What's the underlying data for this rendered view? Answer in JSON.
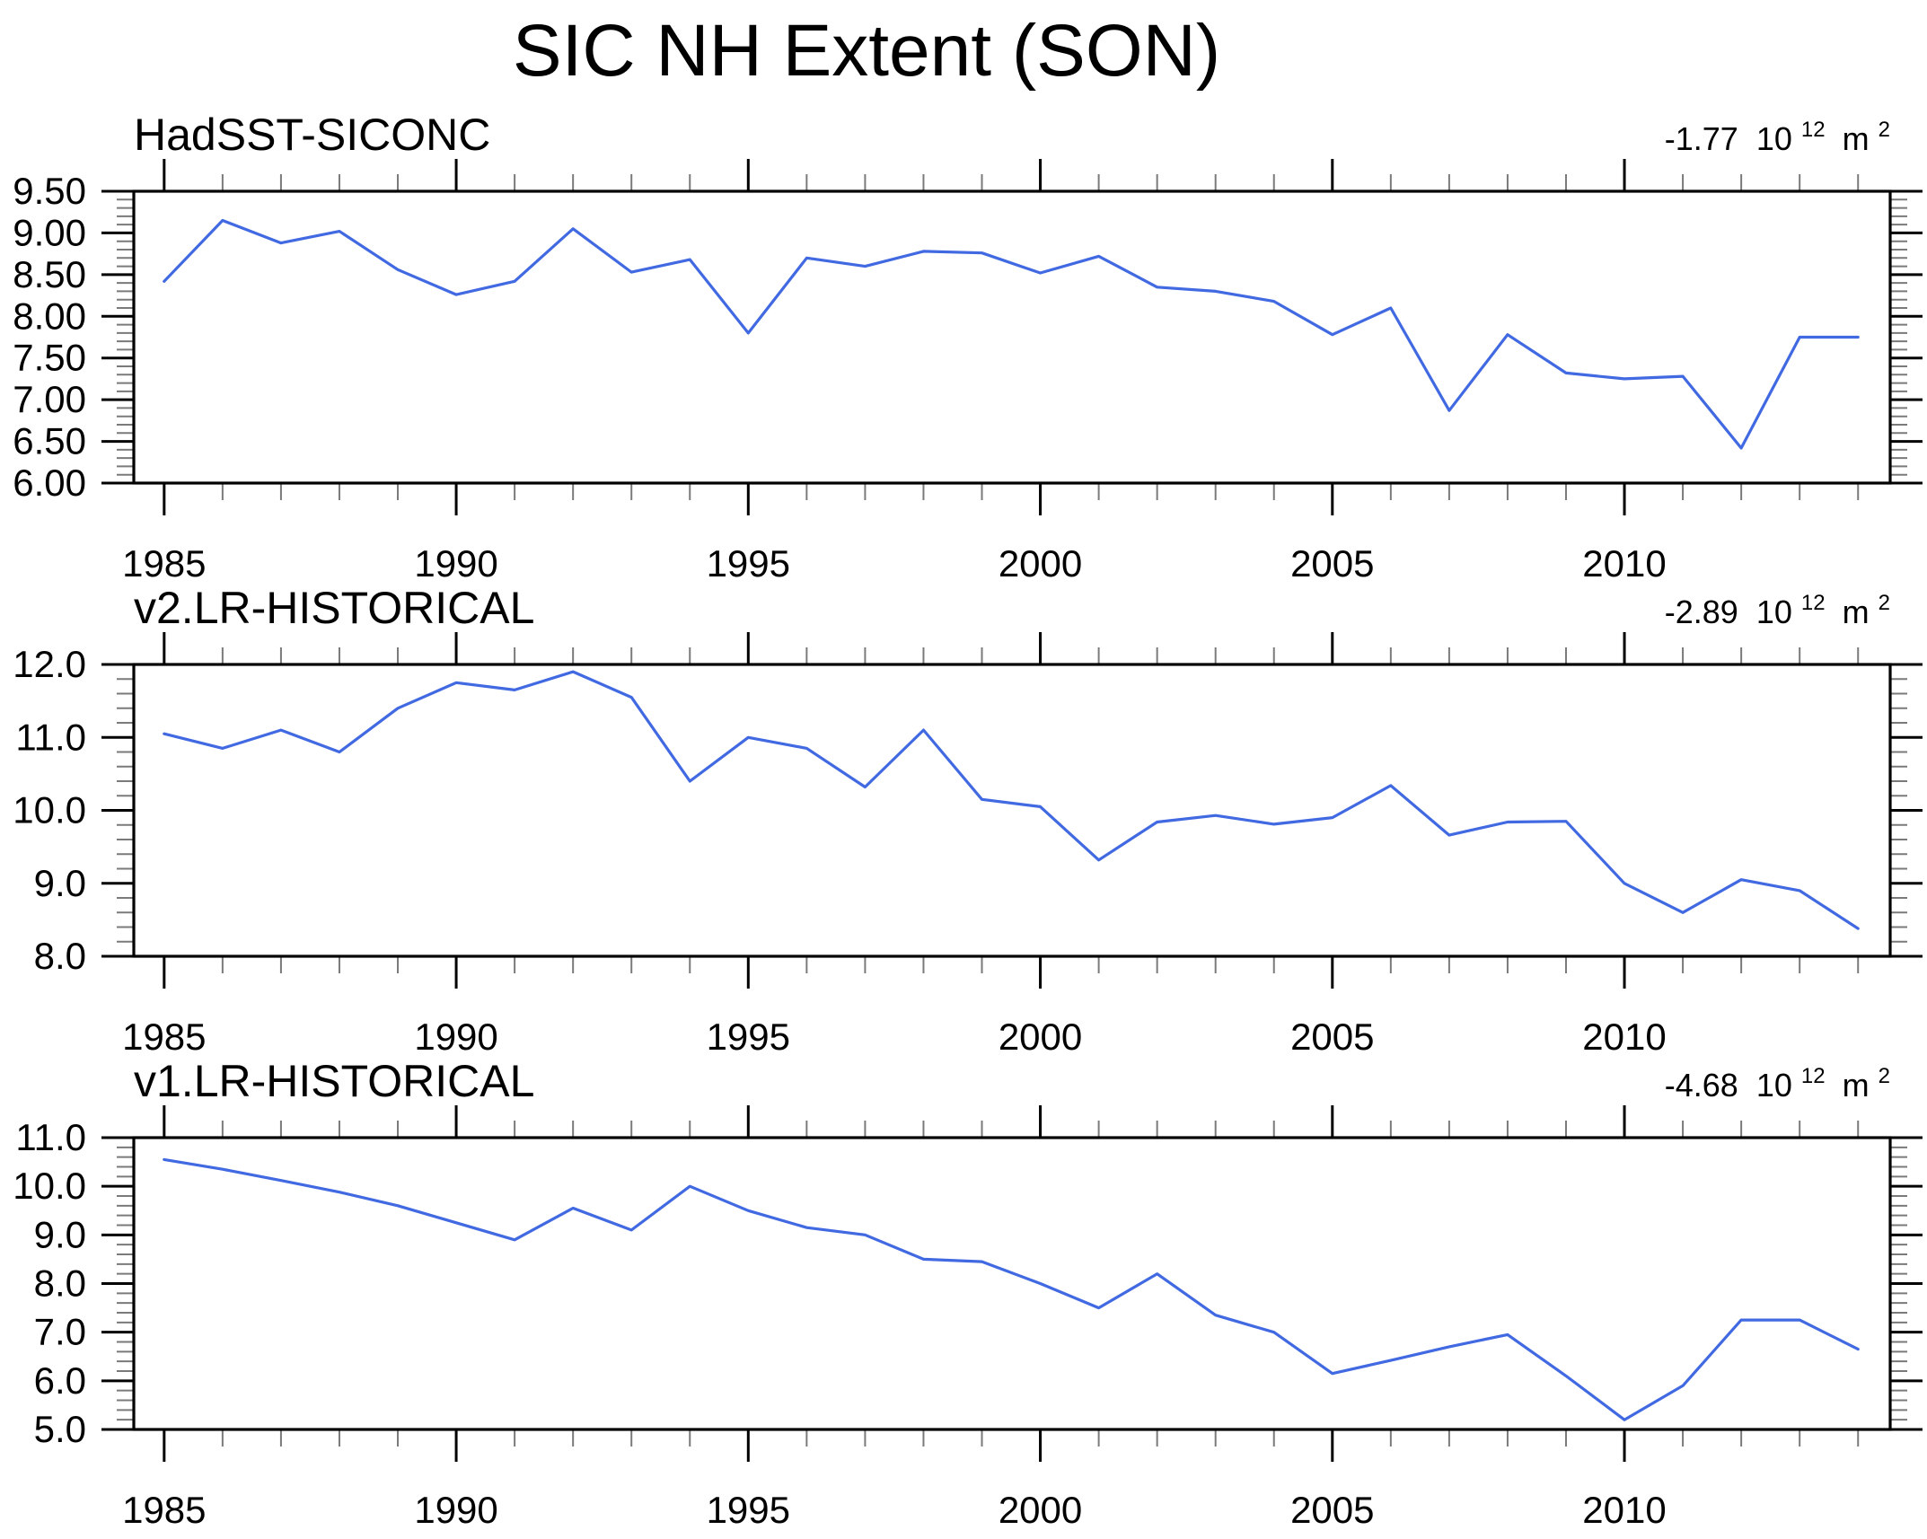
{
  "title": "SIC NH Extent (SON)",
  "colors": {
    "line": "#4169E1",
    "axis": "#000000",
    "minor_tick": "#7a7a7a",
    "background": "#ffffff"
  },
  "chart_data": [
    {
      "type": "line",
      "title": "HadSST-SICONC",
      "annotation": {
        "value": "-1.77",
        "base": "10",
        "exponent": "12",
        "unit": "m",
        "unit_exponent": "2"
      },
      "xlabel": "",
      "ylabel": "",
      "grid": false,
      "legend": "none",
      "xlim": [
        1984.48,
        2014.55
      ],
      "ylim": [
        6.0,
        9.5
      ],
      "y_major_step": 0.5,
      "y_minor_step": 0.1,
      "x_minor_step": 1,
      "x_tick_values": [
        1985,
        1990,
        1995,
        2000,
        2005,
        2010
      ],
      "x_tick_labels": [
        "1985",
        "1990",
        "1995",
        "2000",
        "2005",
        "2010"
      ],
      "y_tick_labels": [
        "9.50",
        "9.00",
        "8.50",
        "8.00",
        "7.50",
        "7.00",
        "6.50",
        "6.00"
      ],
      "x": [
        1985,
        1986,
        1987,
        1988,
        1989,
        1990,
        1991,
        1992,
        1993,
        1994,
        1995,
        1996,
        1997,
        1998,
        1999,
        2000,
        2001,
        2002,
        2003,
        2004,
        2005,
        2006,
        2007,
        2008,
        2009,
        2010,
        2011,
        2012,
        2013,
        2014
      ],
      "values": [
        8.42,
        9.15,
        8.88,
        9.02,
        8.56,
        8.26,
        8.42,
        9.05,
        8.53,
        8.68,
        7.8,
        8.7,
        8.6,
        8.78,
        8.76,
        8.52,
        8.72,
        8.35,
        8.3,
        8.18,
        7.78,
        8.1,
        6.87,
        7.78,
        7.32,
        7.25,
        7.28,
        6.42,
        7.75,
        7.75
      ]
    },
    {
      "type": "line",
      "title": "v2.LR-HISTORICAL",
      "annotation": {
        "value": "-2.89",
        "base": "10",
        "exponent": "12",
        "unit": "m",
        "unit_exponent": "2"
      },
      "xlabel": "",
      "ylabel": "",
      "grid": false,
      "legend": "none",
      "xlim": [
        1984.48,
        2014.55
      ],
      "ylim": [
        8.0,
        12.0
      ],
      "y_major_step": 1.0,
      "y_minor_step": 0.2,
      "x_minor_step": 1,
      "x_tick_values": [
        1985,
        1990,
        1995,
        2000,
        2005,
        2010
      ],
      "x_tick_labels": [
        "1985",
        "1990",
        "1995",
        "2000",
        "2005",
        "2010"
      ],
      "y_tick_labels": [
        "12.0",
        "11.0",
        "10.0",
        "9.0",
        "8.0"
      ],
      "x": [
        1985,
        1986,
        1987,
        1988,
        1989,
        1990,
        1991,
        1992,
        1993,
        1994,
        1995,
        1996,
        1997,
        1998,
        1999,
        2000,
        2001,
        2002,
        2003,
        2004,
        2005,
        2006,
        2007,
        2008,
        2009,
        2010,
        2011,
        2012,
        2013,
        2014
      ],
      "values": [
        11.05,
        10.85,
        11.1,
        10.8,
        11.4,
        11.75,
        11.65,
        11.9,
        11.55,
        10.4,
        11.0,
        10.85,
        10.32,
        11.1,
        10.15,
        10.05,
        9.32,
        9.84,
        9.93,
        9.81,
        9.9,
        10.34,
        9.66,
        9.84,
        9.85,
        9.0,
        8.6,
        9.05,
        8.9,
        8.38
      ]
    },
    {
      "type": "line",
      "title": "v1.LR-HISTORICAL",
      "annotation": {
        "value": "-4.68",
        "base": "10",
        "exponent": "12",
        "unit": "m",
        "unit_exponent": "2"
      },
      "xlabel": "",
      "ylabel": "",
      "grid": false,
      "legend": "none",
      "xlim": [
        1984.48,
        2014.55
      ],
      "ylim": [
        5.0,
        11.0
      ],
      "y_major_step": 1.0,
      "y_minor_step": 0.2,
      "x_minor_step": 1,
      "x_tick_values": [
        1985,
        1990,
        1995,
        2000,
        2005,
        2010
      ],
      "x_tick_labels": [
        "1985",
        "1990",
        "1995",
        "2000",
        "2005",
        "2010"
      ],
      "y_tick_labels": [
        "11.0",
        "10.0",
        "9.0",
        "8.0",
        "7.0",
        "6.0",
        "5.0"
      ],
      "x": [
        1985,
        1986,
        1987,
        1988,
        1989,
        1990,
        1991,
        1992,
        1993,
        1994,
        1995,
        1996,
        1997,
        1998,
        1999,
        2000,
        2001,
        2002,
        2003,
        2004,
        2005,
        2006,
        2007,
        2008,
        2009,
        2010,
        2011,
        2012,
        2013,
        2014
      ],
      "values": [
        10.55,
        10.35,
        10.12,
        9.88,
        9.6,
        9.25,
        8.9,
        9.55,
        9.1,
        10.0,
        9.5,
        9.15,
        9.0,
        8.5,
        8.45,
        8.0,
        7.5,
        8.2,
        7.35,
        7.0,
        6.15,
        6.42,
        6.7,
        6.95,
        6.1,
        5.2,
        5.9,
        7.25,
        7.25,
        6.65
      ]
    }
  ]
}
